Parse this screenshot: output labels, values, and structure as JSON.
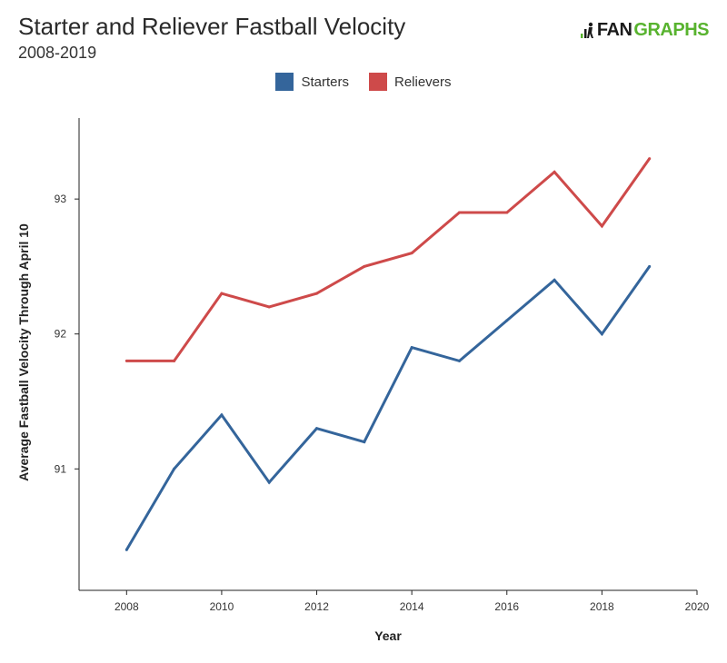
{
  "title": "Starter and Reliever Fastball Velocity",
  "subtitle": "2008-2019",
  "logo": {
    "fan": "FAN",
    "graphs": "GRAPHS"
  },
  "colors": {
    "starters": "#34659b",
    "relievers": "#ce4a4a",
    "brand_green": "#58b32f"
  },
  "chart_data": {
    "type": "line",
    "xlabel": "Year",
    "ylabel": "Average Fastball Velocity Through April 10",
    "xlim": [
      2007,
      2020
    ],
    "ylim": [
      90.1,
      93.6
    ],
    "xticks": [
      2008,
      2010,
      2012,
      2014,
      2016,
      2018,
      2020
    ],
    "yticks": [
      91,
      92,
      93
    ],
    "legend_position": "top-center",
    "grid": false,
    "x": [
      2008,
      2009,
      2010,
      2011,
      2012,
      2013,
      2014,
      2015,
      2016,
      2017,
      2018,
      2019
    ],
    "series": [
      {
        "name": "Starters",
        "color": "#34659b",
        "values": [
          90.4,
          91.0,
          91.4,
          90.9,
          91.3,
          91.2,
          91.9,
          91.8,
          92.1,
          92.4,
          92.0,
          92.5
        ]
      },
      {
        "name": "Relievers",
        "color": "#ce4a4a",
        "values": [
          91.8,
          91.8,
          92.3,
          92.2,
          92.3,
          92.5,
          92.6,
          92.9,
          92.9,
          93.2,
          92.8,
          93.3
        ]
      }
    ]
  }
}
